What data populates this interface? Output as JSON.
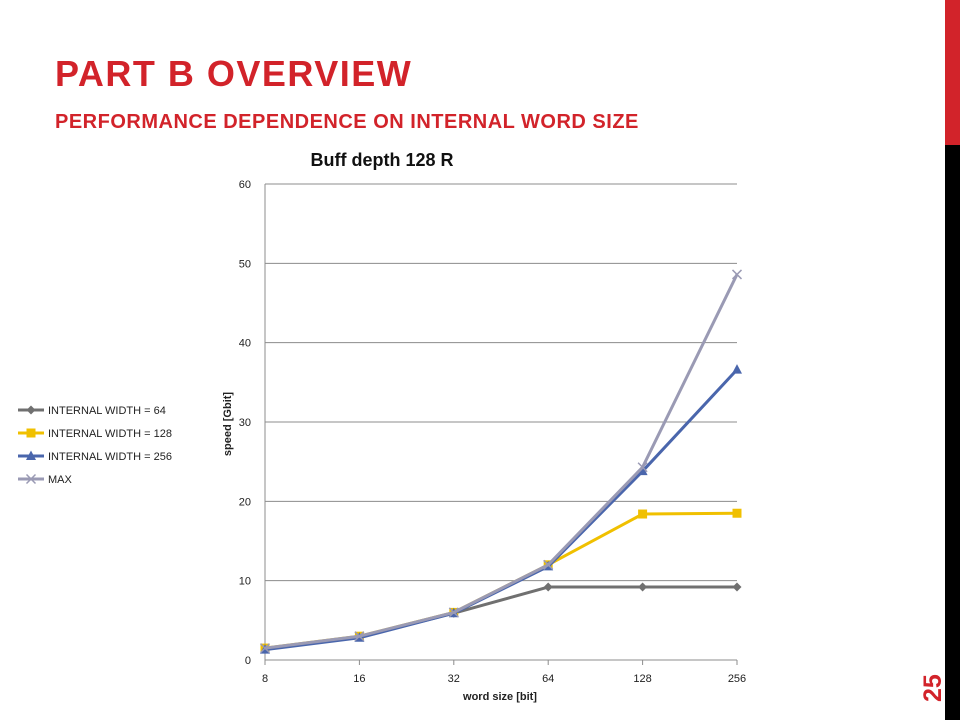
{
  "slide": {
    "title": "PART B OVERVIEW",
    "subtitle": "PERFORMANCE DEPENDENCE ON INTERNAL WORD SIZE",
    "page_number": "25",
    "accent_color": "#d2232a"
  },
  "chart_data": {
    "type": "line",
    "title": "Buff depth 128 R",
    "xlabel": "word size [bit]",
    "ylabel": "speed [Gbit]",
    "categories": [
      "8",
      "16",
      "32",
      "64",
      "128",
      "256"
    ],
    "ylim": [
      0,
      60
    ],
    "yticks": [
      0,
      10,
      20,
      30,
      40,
      50,
      60
    ],
    "grid": true,
    "legend_position": "left",
    "series": [
      {
        "name": "INTERNAL WIDTH = 64",
        "values": [
          1.4,
          2.9,
          5.9,
          9.2,
          9.2,
          9.2
        ],
        "color": "#707070",
        "marker": "diamond"
      },
      {
        "name": "INTERNAL WIDTH = 128",
        "values": [
          1.5,
          3.0,
          6.0,
          12.0,
          18.4,
          18.5
        ],
        "color": "#f0c000",
        "marker": "square"
      },
      {
        "name": "INTERNAL WIDTH = 256",
        "values": [
          1.3,
          2.8,
          5.9,
          11.8,
          23.8,
          36.6
        ],
        "color": "#4a66ac",
        "marker": "triangle"
      },
      {
        "name": "MAX",
        "values": [
          1.5,
          3.0,
          6.0,
          12.0,
          24.3,
          48.6
        ],
        "color": "#9a9ab4",
        "marker": "x"
      }
    ]
  }
}
